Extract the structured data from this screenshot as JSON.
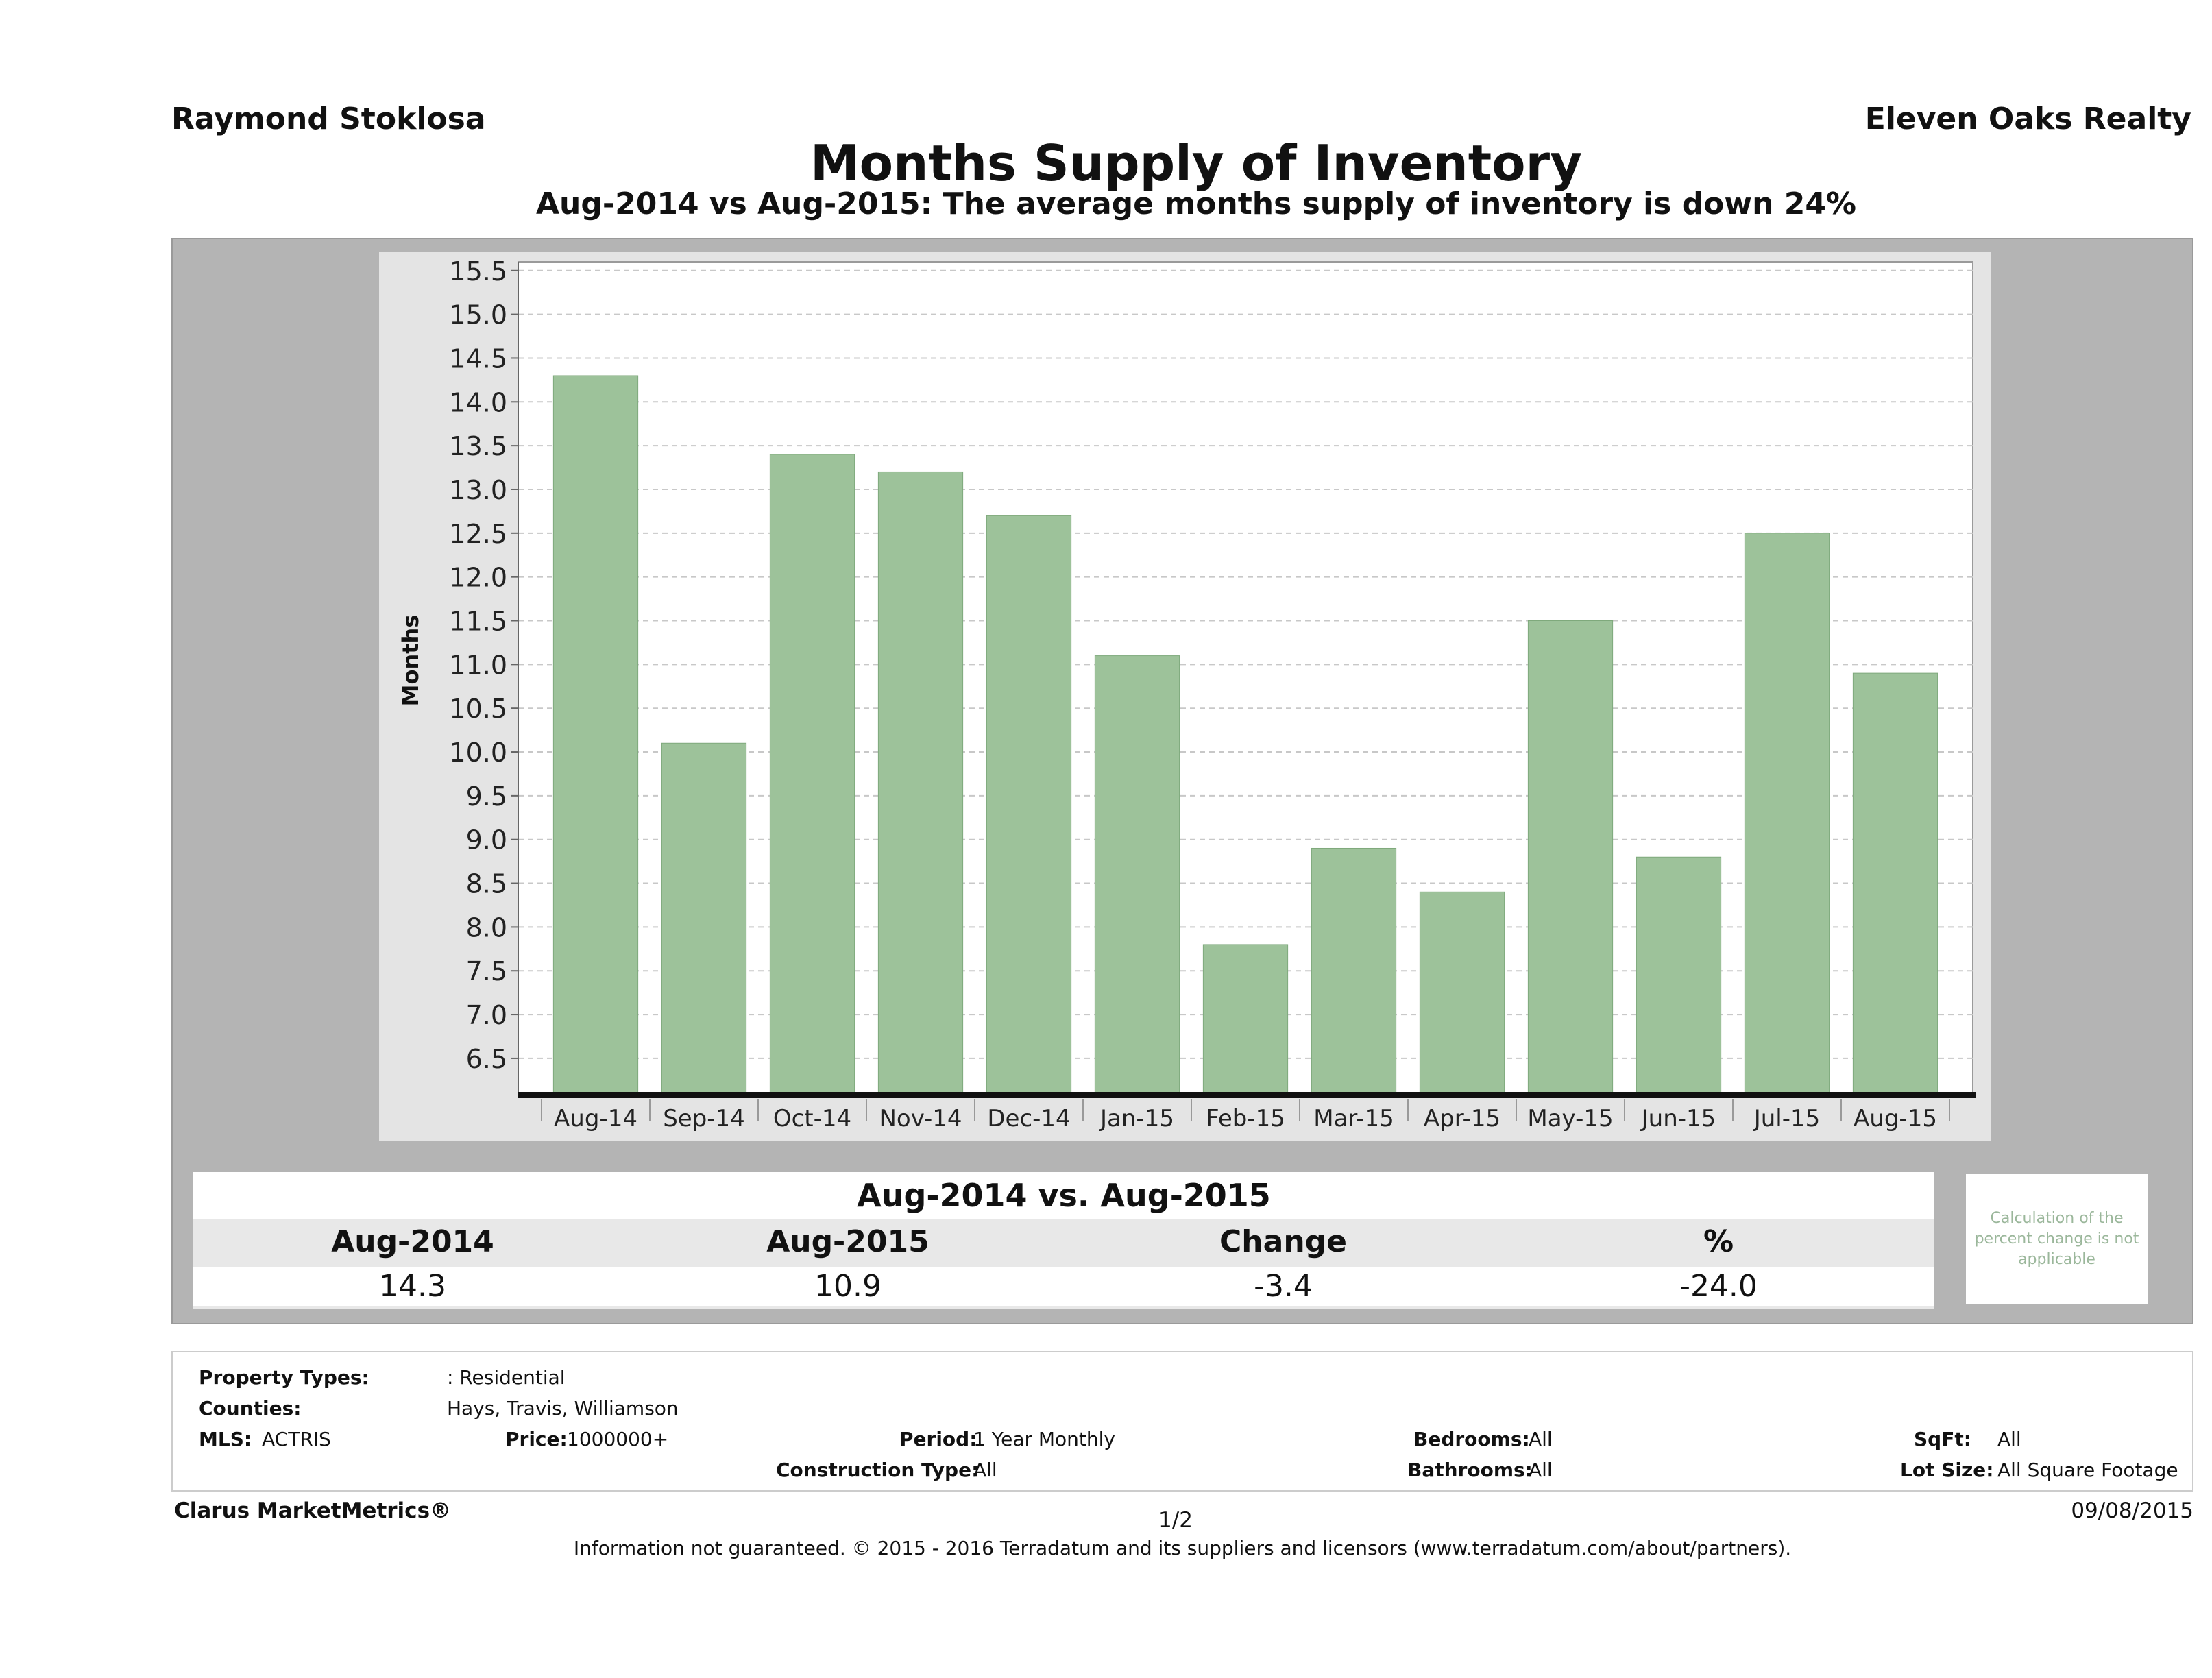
{
  "header": {
    "agent": "Raymond Stoklosa",
    "brokerage": "Eleven Oaks Realty",
    "title": "Months Supply of Inventory",
    "subtitle": "Aug-2014 vs Aug-2015: The average months supply of inventory is down 24%"
  },
  "chart_data": {
    "type": "bar",
    "ylabel": "Months",
    "xlabel": "",
    "ylim": [
      6.1,
      15.6
    ],
    "yticks": [
      "15.5",
      "15.0",
      "14.5",
      "14.0",
      "13.5",
      "13.0",
      "12.5",
      "12.0",
      "11.5",
      "11.0",
      "10.5",
      "10.0",
      "9.5",
      "9.0",
      "8.5",
      "8.0",
      "7.5",
      "7.0",
      "6.5"
    ],
    "grid": true,
    "categories": [
      "Aug-14",
      "Sep-14",
      "Oct-14",
      "Nov-14",
      "Dec-14",
      "Jan-15",
      "Feb-15",
      "Mar-15",
      "Apr-15",
      "May-15",
      "Jun-15",
      "Jul-15",
      "Aug-15"
    ],
    "values": [
      14.3,
      10.1,
      13.4,
      13.2,
      12.7,
      11.1,
      7.8,
      8.9,
      8.4,
      11.5,
      8.8,
      12.5,
      10.9
    ],
    "bar_color": "#9dc29a"
  },
  "summary": {
    "title": "Aug-2014 vs. Aug-2015",
    "headers": [
      "Aug-2014",
      "Aug-2015",
      "Change",
      "%"
    ],
    "values": [
      "14.3",
      "10.9",
      "-3.4",
      "-24.0"
    ],
    "note": "Calculation of the percent change is not applicable"
  },
  "criteria": {
    "property_types_label": "Property Types:",
    "property_types_value": ": Residential",
    "counties_label": "Counties:",
    "counties_value": "Hays, Travis, Williamson",
    "mls_label": "MLS:",
    "mls_value": "ACTRIS",
    "price_label": "Price:",
    "price_value": "1000000+",
    "period_label": "Period:",
    "period_value": "1 Year Monthly",
    "bedrooms_label": "Bedrooms:",
    "bedrooms_value": "All",
    "sqft_label": "SqFt:",
    "sqft_value": "All",
    "construction_label": "Construction Type:",
    "construction_value": "All",
    "bathrooms_label": "Bathrooms:",
    "bathrooms_value": "All",
    "lot_label": "Lot Size:",
    "lot_value": "All Square Footage"
  },
  "footer": {
    "product": "Clarus MarketMetrics®",
    "page": "1/2",
    "date": "09/08/2015",
    "disclaimer": "Information not guaranteed. © 2015 - 2016 Terradatum and its suppliers and licensors (www.terradatum.com/about/partners)."
  }
}
